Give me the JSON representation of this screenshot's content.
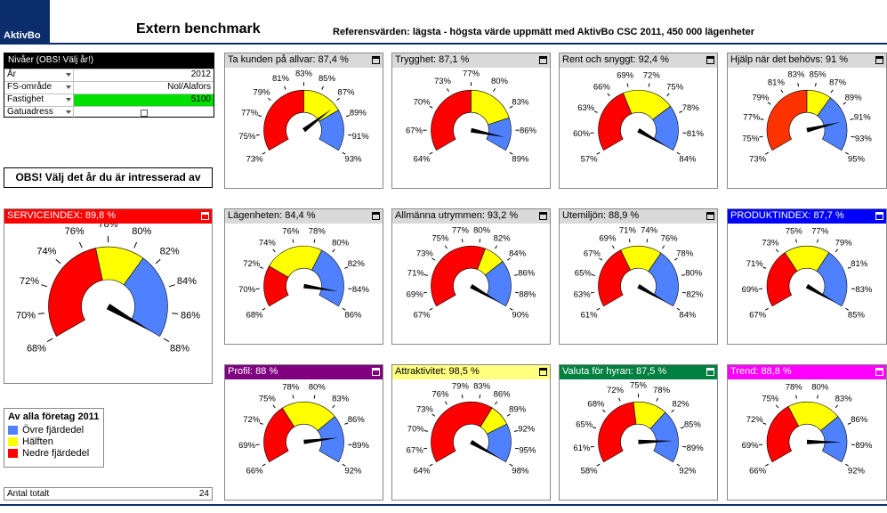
{
  "header": {
    "logo_text": "AktivBo",
    "title": "Extern benchmark",
    "reference_text": "Referensvärden: lägsta - högsta värde uppmätt med AktivBo CSC 2011, 450 000 lägenheter"
  },
  "filter": {
    "header": "Nivåer (OBS! Välj år!)",
    "rows": [
      {
        "label": "År",
        "value": "2012"
      },
      {
        "label": "FS-område",
        "value": "Nol/Alafors"
      },
      {
        "label": "Fastighet",
        "value": "5100"
      },
      {
        "label": "Gatuadress",
        "value": ""
      }
    ]
  },
  "notice": "OBS! Välj det år du är intresserad av",
  "colors": {
    "low": "#ff0000",
    "mid": "#ffff00",
    "high": "#4f81ff"
  },
  "gauges": [
    {
      "title": "Ta kunden på allvar: 87,4 %",
      "title_bg": "#d9d9d9",
      "title_fg": "#000000",
      "ticks": [
        "73%",
        "75%",
        "77%",
        "79%",
        "81%",
        "83%",
        "85%",
        "87%",
        "89%",
        "91%",
        "93%"
      ],
      "min": 73,
      "max": 93,
      "q1": 83,
      "q3": 88,
      "value": 87.4,
      "low_color": "#ff0000"
    },
    {
      "title": "Trygghet: 87,1 %",
      "title_bg": "#d9d9d9",
      "title_fg": "#000000",
      "ticks": [
        "64%",
        "67%",
        "70%",
        "73%",
        "77%",
        "80%",
        "83%",
        "86%",
        "89%"
      ],
      "min": 64,
      "max": 89,
      "q1": 76.5,
      "q3": 84,
      "value": 87.1,
      "low_color": "#ff0000"
    },
    {
      "title": "Rent och snyggt: 92,4 %",
      "title_bg": "#d9d9d9",
      "title_fg": "#000000",
      "ticks": [
        "57%",
        "60%",
        "63%",
        "66%",
        "69%",
        "72%",
        "75%",
        "78%",
        "81%",
        "84%"
      ],
      "min": 57,
      "max": 84,
      "q1": 68,
      "q3": 76.5,
      "value": 92.4,
      "low_color": "#ff0000"
    },
    {
      "title": "Hjälp när det behövs: 91 %",
      "title_bg": "#d9d9d9",
      "title_fg": "#000000",
      "ticks": [
        "73%",
        "75%",
        "77%",
        "79%",
        "81%",
        "83%",
        "85%",
        "87%",
        "89%",
        "91%",
        "93%",
        "95%"
      ],
      "min": 73,
      "max": 95,
      "q1": 84,
      "q3": 87.3,
      "value": 91,
      "low_color": "#ff3300"
    },
    {
      "title": "SERVICEINDEX: 89,8 %",
      "title_bg": "#ff0000",
      "title_fg": "#ffffff",
      "ticks": [
        "68%",
        "70%",
        "72%",
        "74%",
        "76%",
        "78%",
        "80%",
        "82%",
        "84%",
        "86%",
        "88%"
      ],
      "min": 68,
      "max": 88,
      "q1": 77,
      "q3": 81,
      "value": 89.8,
      "low_color": "#ff0000"
    },
    {
      "title": "Lägenheten: 84,4 %",
      "title_bg": "#d9d9d9",
      "title_fg": "#000000",
      "ticks": [
        "68%",
        "70%",
        "72%",
        "74%",
        "76%",
        "78%",
        "80%",
        "82%",
        "84%",
        "86%"
      ],
      "min": 68,
      "max": 86,
      "q1": 72.5,
      "q3": 79,
      "value": 84.4,
      "low_color": "#ff0000"
    },
    {
      "title": "Allmänna utrymmen: 93,2 %",
      "title_bg": "#d9d9d9",
      "title_fg": "#000000",
      "ticks": [
        "67%",
        "69%",
        "71%",
        "73%",
        "75%",
        "77%",
        "80%",
        "82%",
        "84%",
        "86%",
        "88%",
        "90%"
      ],
      "min": 67,
      "max": 90,
      "q1": 80.5,
      "q3": 83.5,
      "value": 93.2,
      "low_color": "#ff0000"
    },
    {
      "title": "Utemiljön: 88,9 %",
      "title_bg": "#d9d9d9",
      "title_fg": "#000000",
      "ticks": [
        "61%",
        "63%",
        "65%",
        "67%",
        "69%",
        "71%",
        "74%",
        "76%",
        "78%",
        "80%",
        "82%",
        "84%"
      ],
      "min": 61,
      "max": 84,
      "q1": 70,
      "q3": 75.8,
      "value": 88.9,
      "low_color": "#ff0000"
    },
    {
      "title": "PRODUKTINDEX: 87,7 %",
      "title_bg": "#0000ff",
      "title_fg": "#ffffff",
      "ticks": [
        "67%",
        "69%",
        "71%",
        "73%",
        "75%",
        "77%",
        "79%",
        "81%",
        "83%",
        "85%"
      ],
      "min": 67,
      "max": 85,
      "q1": 73.5,
      "q3": 78.5,
      "value": 87.7,
      "low_color": "#ff0000"
    },
    {
      "title": "Profil: 88 %",
      "title_bg": "#800080",
      "title_fg": "#ffffff",
      "ticks": [
        "66%",
        "69%",
        "72%",
        "75%",
        "78%",
        "80%",
        "83%",
        "86%",
        "89%",
        "92%"
      ],
      "min": 66,
      "max": 92,
      "q1": 75.5,
      "q3": 84.5,
      "value": 88,
      "low_color": "#ff0000"
    },
    {
      "title": "Attraktivitet: 98,5 %",
      "title_bg": "#ffff80",
      "title_fg": "#000000",
      "ticks": [
        "64%",
        "67%",
        "70%",
        "73%",
        "76%",
        "79%",
        "83%",
        "86%",
        "89%",
        "92%",
        "95%",
        "98%"
      ],
      "min": 64,
      "max": 98,
      "q1": 85.5,
      "q3": 90,
      "value": 98.5,
      "low_color": "#ff0000"
    },
    {
      "title": "Valuta för hyran: 87,5 %",
      "title_bg": "#008040",
      "title_fg": "#ffffff",
      "ticks": [
        "58%",
        "61%",
        "65%",
        "68%",
        "72%",
        "75%",
        "78%",
        "82%",
        "85%",
        "89%",
        "92%"
      ],
      "min": 58,
      "max": 92,
      "q1": 74,
      "q3": 81,
      "value": 87.5,
      "low_color": "#ff0000"
    },
    {
      "title": "Trend: 88,8 %",
      "title_bg": "#ff00ff",
      "title_fg": "#ffffff",
      "ticks": [
        "66%",
        "69%",
        "72%",
        "75%",
        "78%",
        "80%",
        "83%",
        "86%",
        "89%",
        "92%"
      ],
      "min": 66,
      "max": 92,
      "q1": 76,
      "q3": 84.5,
      "value": 88.8,
      "low_color": "#ff0000"
    }
  ],
  "legend": {
    "title": "Av alla företag 2011",
    "items": [
      {
        "label": "Övre fjärdedel",
        "color": "#4f81ff"
      },
      {
        "label": "Hälften",
        "color": "#ffff00"
      },
      {
        "label": "Nedre fjärdedel",
        "color": "#ff0000"
      }
    ]
  },
  "count": {
    "label": "Antal totalt",
    "value": "24"
  }
}
